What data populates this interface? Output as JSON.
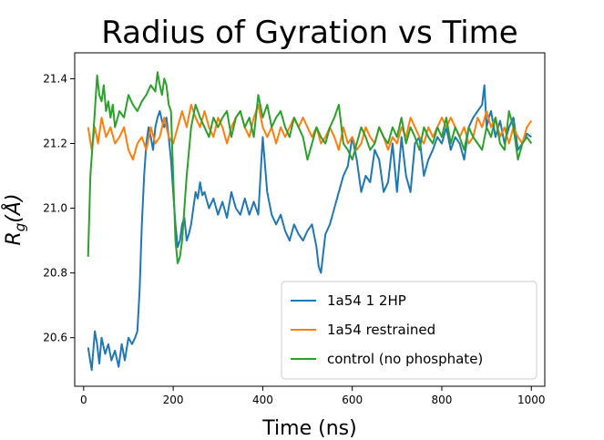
{
  "chart_data": {
    "type": "line",
    "title": "Radius of Gyration vs Time",
    "xlabel": "Time (ns)",
    "ylabel": "R_g(Å)",
    "xlim": [
      -20,
      1030
    ],
    "ylim": [
      20.45,
      21.48
    ],
    "xticks": [
      0,
      200,
      400,
      600,
      800,
      1000
    ],
    "yticks": [
      20.6,
      20.8,
      21.0,
      21.2,
      21.4
    ],
    "ytick_labels": [
      "20.6",
      "20.8",
      "21.0",
      "21.2",
      "21.4"
    ],
    "grid": false,
    "legend_position": "lower-right",
    "series": [
      {
        "name": "1a54 1 2HP",
        "color": "#1f77b4",
        "x": [
          10,
          18,
          25,
          30,
          35,
          40,
          48,
          55,
          62,
          70,
          78,
          85,
          92,
          100,
          108,
          115,
          120,
          125,
          130,
          135,
          140,
          145,
          150,
          155,
          160,
          165,
          170,
          175,
          180,
          185,
          190,
          195,
          200,
          205,
          210,
          215,
          220,
          225,
          230,
          235,
          240,
          245,
          250,
          255,
          260,
          265,
          270,
          280,
          290,
          300,
          310,
          320,
          330,
          340,
          350,
          360,
          370,
          380,
          390,
          400,
          410,
          420,
          430,
          440,
          450,
          460,
          470,
          480,
          490,
          500,
          510,
          520,
          525,
          530,
          540,
          550,
          560,
          570,
          580,
          590,
          600,
          610,
          620,
          630,
          640,
          650,
          660,
          670,
          680,
          690,
          700,
          710,
          720,
          730,
          740,
          750,
          760,
          770,
          780,
          790,
          800,
          810,
          820,
          830,
          840,
          850,
          860,
          870,
          880,
          890,
          895,
          900,
          905,
          910,
          920,
          930,
          940,
          950,
          960,
          970,
          980,
          990,
          1000
        ],
        "y": [
          20.57,
          20.5,
          20.62,
          20.58,
          20.52,
          20.6,
          20.55,
          20.58,
          20.53,
          20.56,
          20.51,
          20.58,
          20.53,
          20.6,
          20.58,
          20.6,
          20.62,
          20.75,
          20.95,
          21.1,
          21.2,
          21.25,
          21.22,
          21.18,
          21.25,
          21.28,
          21.3,
          21.27,
          21.25,
          21.28,
          21.22,
          21.15,
          21.05,
          20.95,
          20.88,
          20.9,
          20.95,
          20.97,
          20.9,
          20.92,
          20.95,
          21.0,
          21.05,
          21.03,
          21.08,
          21.04,
          21.05,
          21.0,
          21.03,
          20.98,
          21.02,
          20.97,
          21.05,
          21.0,
          20.98,
          21.03,
          20.98,
          21.02,
          20.98,
          21.22,
          21.05,
          20.98,
          20.95,
          20.98,
          20.93,
          20.9,
          20.95,
          20.92,
          20.9,
          20.93,
          20.95,
          20.88,
          20.82,
          20.8,
          20.92,
          20.95,
          21.0,
          21.05,
          21.1,
          21.13,
          21.22,
          21.15,
          21.05,
          21.1,
          21.08,
          21.18,
          21.15,
          21.05,
          21.08,
          21.2,
          21.05,
          21.22,
          21.1,
          21.05,
          21.2,
          21.22,
          21.1,
          21.15,
          21.18,
          21.22,
          21.2,
          21.25,
          21.18,
          21.22,
          21.2,
          21.15,
          21.25,
          21.28,
          21.3,
          21.32,
          21.38,
          21.25,
          21.28,
          21.3,
          21.22,
          21.27,
          21.2,
          21.25,
          21.28,
          21.18,
          21.2,
          21.23,
          21.22
        ]
      },
      {
        "name": "1a54 restrained",
        "color": "#ff7f0e",
        "x": [
          10,
          18,
          25,
          32,
          40,
          50,
          60,
          70,
          80,
          90,
          100,
          110,
          120,
          130,
          140,
          150,
          160,
          170,
          180,
          190,
          200,
          210,
          220,
          230,
          240,
          250,
          260,
          270,
          280,
          290,
          300,
          310,
          320,
          330,
          340,
          350,
          360,
          370,
          380,
          390,
          400,
          410,
          420,
          430,
          440,
          450,
          460,
          470,
          480,
          490,
          500,
          510,
          520,
          530,
          540,
          550,
          560,
          570,
          580,
          590,
          600,
          610,
          620,
          630,
          640,
          650,
          660,
          670,
          680,
          690,
          700,
          710,
          720,
          730,
          740,
          750,
          760,
          770,
          780,
          790,
          800,
          810,
          820,
          830,
          840,
          850,
          860,
          870,
          880,
          890,
          900,
          910,
          920,
          930,
          940,
          950,
          960,
          970,
          980,
          990,
          1000
        ],
        "y": [
          21.25,
          21.18,
          21.25,
          21.2,
          21.28,
          21.22,
          21.25,
          21.2,
          21.22,
          21.25,
          21.18,
          21.15,
          21.2,
          21.22,
          21.18,
          21.25,
          21.2,
          21.22,
          21.28,
          21.22,
          21.2,
          21.25,
          21.3,
          21.25,
          21.32,
          21.28,
          21.25,
          21.3,
          21.25,
          21.22,
          21.28,
          21.25,
          21.2,
          21.25,
          21.28,
          21.3,
          21.25,
          21.22,
          21.28,
          21.32,
          21.25,
          21.22,
          21.25,
          21.2,
          21.25,
          21.22,
          21.25,
          21.28,
          21.25,
          21.28,
          21.25,
          21.22,
          21.25,
          21.2,
          21.22,
          21.25,
          21.22,
          21.18,
          21.25,
          21.2,
          21.22,
          21.18,
          21.2,
          21.25,
          21.22,
          21.2,
          21.25,
          21.22,
          21.18,
          21.22,
          21.2,
          21.25,
          21.22,
          21.28,
          21.25,
          21.22,
          21.2,
          21.25,
          21.22,
          21.25,
          21.28,
          21.25,
          21.28,
          21.25,
          21.22,
          21.25,
          21.2,
          21.22,
          21.28,
          21.25,
          21.3,
          21.25,
          21.28,
          21.22,
          21.25,
          21.2,
          21.25,
          21.22,
          21.2,
          21.25,
          21.27
        ]
      },
      {
        "name": "control (no phosphate)",
        "color": "#2ca02c",
        "x": [
          10,
          15,
          20,
          25,
          30,
          35,
          40,
          45,
          50,
          55,
          60,
          65,
          70,
          80,
          90,
          100,
          110,
          120,
          130,
          140,
          150,
          160,
          165,
          170,
          175,
          180,
          185,
          190,
          195,
          200,
          205,
          210,
          215,
          220,
          225,
          230,
          240,
          250,
          260,
          270,
          280,
          290,
          300,
          310,
          320,
          330,
          340,
          350,
          360,
          370,
          380,
          390,
          400,
          410,
          420,
          430,
          440,
          450,
          460,
          470,
          480,
          490,
          500,
          510,
          520,
          530,
          540,
          550,
          560,
          570,
          580,
          590,
          600,
          610,
          620,
          630,
          640,
          650,
          660,
          670,
          680,
          690,
          700,
          710,
          720,
          730,
          740,
          750,
          760,
          770,
          780,
          790,
          800,
          810,
          820,
          830,
          840,
          850,
          860,
          870,
          880,
          890,
          900,
          910,
          920,
          930,
          940,
          950,
          960,
          970,
          980,
          990,
          1000
        ],
        "y": [
          20.85,
          21.1,
          21.2,
          21.3,
          21.41,
          21.35,
          21.33,
          21.38,
          21.3,
          21.33,
          21.28,
          21.32,
          21.25,
          21.3,
          21.28,
          21.35,
          21.32,
          21.3,
          21.33,
          21.35,
          21.38,
          21.36,
          21.42,
          21.38,
          21.35,
          21.4,
          21.38,
          21.32,
          21.3,
          21.1,
          20.9,
          20.83,
          20.85,
          20.9,
          21.0,
          21.1,
          21.25,
          21.32,
          21.28,
          21.25,
          21.22,
          21.28,
          21.25,
          21.28,
          21.3,
          21.22,
          21.28,
          21.3,
          21.25,
          21.28,
          21.22,
          21.35,
          21.28,
          21.32,
          21.25,
          21.28,
          21.3,
          21.25,
          21.22,
          21.28,
          21.25,
          21.22,
          21.15,
          21.2,
          21.25,
          21.22,
          21.2,
          21.25,
          21.28,
          21.32,
          21.2,
          21.18,
          21.15,
          21.2,
          21.25,
          21.22,
          21.18,
          21.2,
          21.25,
          21.22,
          21.2,
          21.25,
          21.22,
          21.28,
          21.2,
          21.25,
          21.22,
          21.18,
          21.25,
          21.22,
          21.2,
          21.25,
          21.22,
          21.28,
          21.2,
          21.25,
          21.22,
          21.18,
          21.25,
          21.22,
          21.2,
          21.18,
          21.25,
          21.22,
          21.28,
          21.2,
          21.18,
          21.3,
          21.25,
          21.15,
          21.2,
          21.22,
          21.2
        ]
      }
    ]
  }
}
